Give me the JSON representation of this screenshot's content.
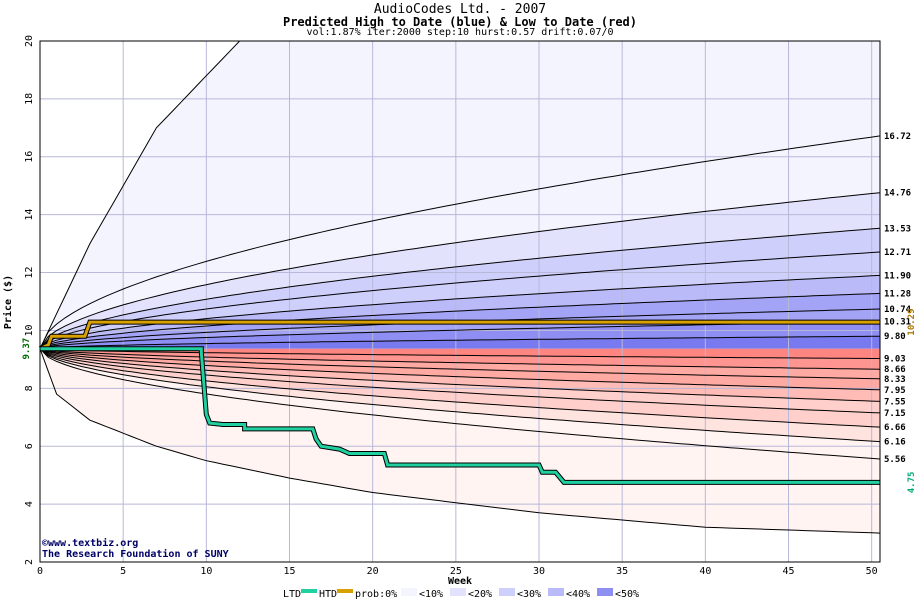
{
  "title": "AudioCodes Ltd. - 2007",
  "subtitle": "Predicted High to Date (blue) &  Low to Date (red)",
  "params": "vol:1.87% iter:2000 step:10 hurst:0.57 drift:0.07/0",
  "credit": {
    "line1": "©www.textbiz.org",
    "line2": "The Research Foundation of SUNY"
  },
  "legend": {
    "ltd": "LTD",
    "htd": "HTD",
    "prob": "prob:0%",
    "bins": [
      "<10%",
      "<20%",
      "<30%",
      "<40%",
      "<50%"
    ]
  },
  "colors": {
    "blue_bands": [
      "#f4f4ff",
      "#e2e2fd",
      "#cfcffb",
      "#babaf9",
      "#a4a4f6",
      "#8e8ef3",
      "#7a7af0"
    ],
    "red_bands": [
      "#fff4f2",
      "#ffe3df",
      "#ffd0cb",
      "#ffbcb6",
      "#ffa9a3",
      "#ff9590",
      "#ff8580"
    ],
    "ltd_line": "#20d0a0",
    "htd_line": "#d8a000",
    "start_label": "#006600",
    "htd_label": "#aa7700",
    "ltd_label": "#00aa77"
  },
  "chart_data": {
    "type": "area",
    "title": "AudioCodes Ltd. - 2007",
    "xlabel": "Week",
    "ylabel": "Price ($)",
    "xlim": [
      0,
      50.5
    ],
    "ylim": [
      2,
      20
    ],
    "grid": true,
    "x_ticks": [
      0,
      5,
      10,
      15,
      20,
      25,
      30,
      35,
      40,
      45,
      50
    ],
    "y_ticks": [
      2,
      4,
      6,
      8,
      10,
      12,
      14,
      16,
      18,
      20
    ],
    "start_value": 9.37,
    "start_label": "9.37",
    "high_quantiles": [
      {
        "label": "16.72",
        "end": 16.72
      },
      {
        "label": "14.76",
        "end": 14.76
      },
      {
        "label": "13.53",
        "end": 13.53
      },
      {
        "label": "12.71",
        "end": 12.71
      },
      {
        "label": "11.90",
        "end": 11.9
      },
      {
        "label": "11.28",
        "end": 11.28
      },
      {
        "label": "10.74",
        "end": 10.74
      },
      {
        "label": "10.31",
        "end": 10.31
      },
      {
        "label": "9.80",
        "end": 9.8
      }
    ],
    "low_quantiles": [
      {
        "label": "9.03",
        "end": 9.03
      },
      {
        "label": "8.66",
        "end": 8.66
      },
      {
        "label": "8.33",
        "end": 8.33
      },
      {
        "label": "7.95",
        "end": 7.95
      },
      {
        "label": "7.55",
        "end": 7.55
      },
      {
        "label": "7.15",
        "end": 7.15
      },
      {
        "label": "6.66",
        "end": 6.66
      },
      {
        "label": "6.16",
        "end": 6.16
      },
      {
        "label": "5.56",
        "end": 5.56
      }
    ],
    "outer_high_path": [
      [
        0,
        9.37
      ],
      [
        3,
        13
      ],
      [
        7,
        17
      ],
      [
        12,
        20
      ]
    ],
    "outer_low_path": [
      [
        0,
        9.37
      ],
      [
        1,
        7.8
      ],
      [
        3,
        6.9
      ],
      [
        7,
        6.0
      ],
      [
        10,
        5.5
      ],
      [
        15,
        4.9
      ],
      [
        20,
        4.4
      ],
      [
        30,
        3.7
      ],
      [
        40,
        3.2
      ],
      [
        50.5,
        3.0
      ]
    ],
    "htd_series": {
      "name": "HTD",
      "points": [
        [
          0,
          9.37
        ],
        [
          0.5,
          9.5
        ],
        [
          0.7,
          9.8
        ],
        [
          2.7,
          9.8
        ],
        [
          3.0,
          10.29
        ],
        [
          50.5,
          10.29
        ]
      ],
      "label": "10.29"
    },
    "ltd_series": {
      "name": "LTD",
      "points": [
        [
          0,
          9.37
        ],
        [
          9.7,
          9.37
        ],
        [
          9.7,
          9.25
        ],
        [
          10.0,
          7.1
        ],
        [
          10.2,
          6.8
        ],
        [
          11,
          6.75
        ],
        [
          12.3,
          6.75
        ],
        [
          12.3,
          6.6
        ],
        [
          16.4,
          6.6
        ],
        [
          16.6,
          6.25
        ],
        [
          16.9,
          6.0
        ],
        [
          18,
          5.9
        ],
        [
          18.6,
          5.75
        ],
        [
          20.7,
          5.75
        ],
        [
          20.9,
          5.35
        ],
        [
          30,
          5.35
        ],
        [
          30.2,
          5.1
        ],
        [
          31,
          5.1
        ],
        [
          31.5,
          4.75
        ],
        [
          50.5,
          4.75
        ]
      ],
      "label": "4.75"
    }
  }
}
